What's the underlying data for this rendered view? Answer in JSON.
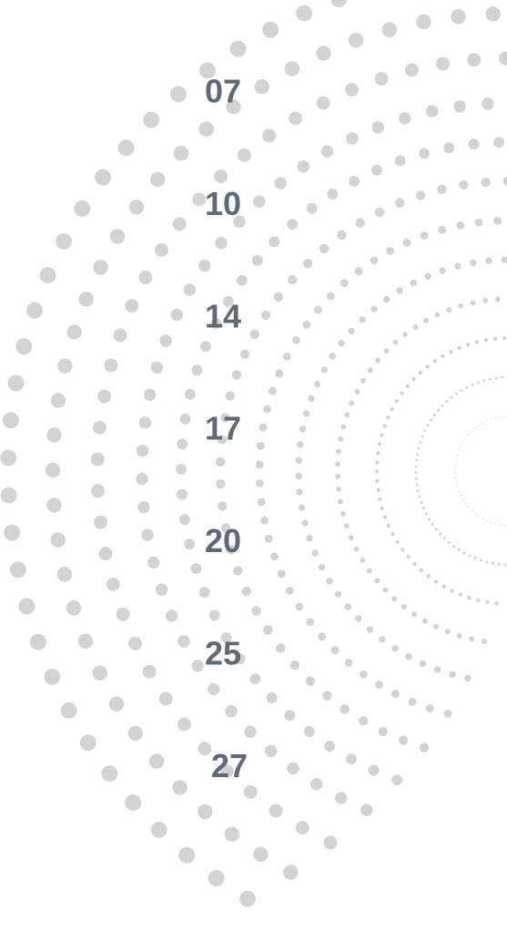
{
  "labels": [
    "07",
    "10",
    "14",
    "17",
    "20",
    "25",
    "27"
  ]
}
